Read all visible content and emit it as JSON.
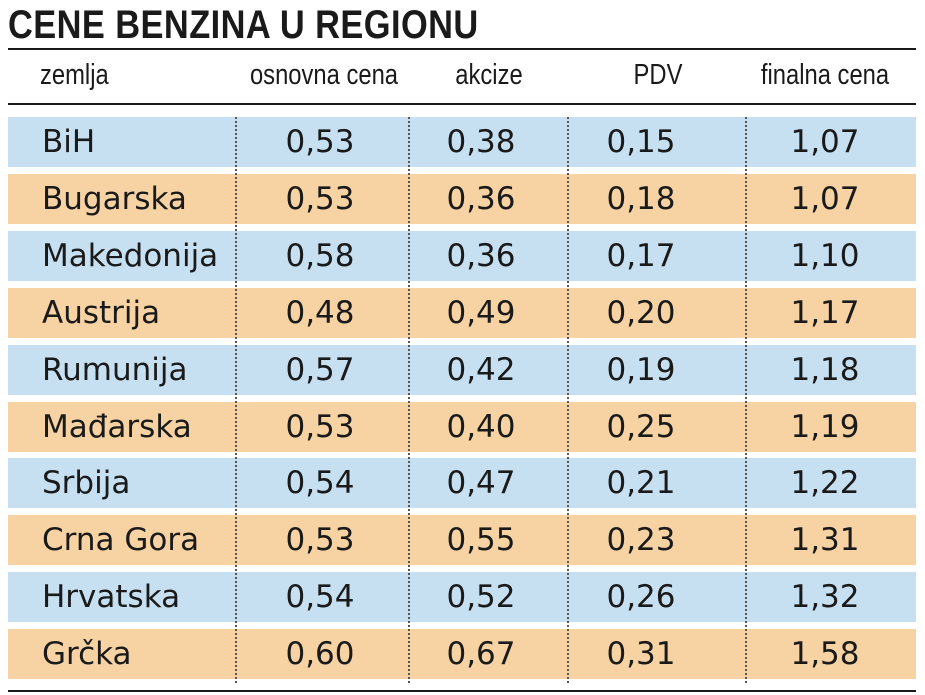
{
  "title": "CENE BENZINA U REGIONU",
  "colors": {
    "row_odd": "#c6e0f2",
    "row_even": "#f7d3a4",
    "text": "#1a1a1a",
    "rule": "#1a1a1a"
  },
  "chart_data": {
    "type": "table",
    "title": "CENE BENZINA U REGIONU",
    "columns": [
      "zemlja",
      "osnovna cena",
      "akcize",
      "PDV",
      "finalna cena"
    ],
    "rows": [
      [
        "BiH",
        "0,53",
        "0,38",
        "0,15",
        "1,07"
      ],
      [
        "Bugarska",
        "0,53",
        "0,36",
        "0,18",
        "1,07"
      ],
      [
        "Makedonija",
        "0,58",
        "0,36",
        "0,17",
        "1,10"
      ],
      [
        "Austrija",
        "0,48",
        "0,49",
        "0,20",
        "1,17"
      ],
      [
        "Rumunija",
        "0,57",
        "0,42",
        "0,19",
        "1,18"
      ],
      [
        "Mađarska",
        "0,53",
        "0,40",
        "0,25",
        "1,19"
      ],
      [
        "Srbija",
        "0,54",
        "0,47",
        "0,21",
        "1,22"
      ],
      [
        "Crna Gora",
        "0,53",
        "0,55",
        "0,23",
        "1,31"
      ],
      [
        "Hrvatska",
        "0,54",
        "0,52",
        "0,26",
        "1,32"
      ],
      [
        "Grčka",
        "0,60",
        "0,67",
        "0,31",
        "1,58"
      ]
    ]
  }
}
